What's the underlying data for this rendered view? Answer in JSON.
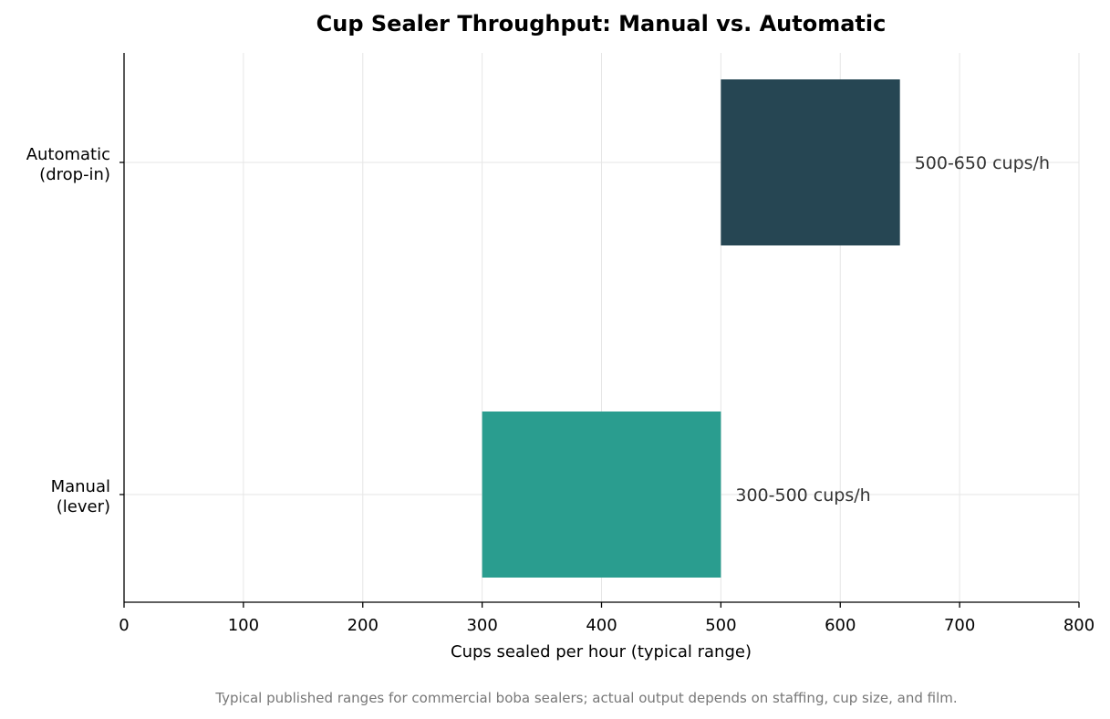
{
  "chart_data": {
    "type": "bar",
    "orientation": "horizontal",
    "title": "Cup Sealer Throughput: Manual vs. Automatic",
    "xlabel": "Cups sealed per hour (typical range)",
    "ylabel": "",
    "xlim": [
      0,
      800
    ],
    "xticks": [
      0,
      100,
      200,
      300,
      400,
      500,
      600,
      700,
      800
    ],
    "grid": true,
    "categories": [
      [
        "Automatic",
        "(drop-in)"
      ],
      [
        "Manual",
        "(lever)"
      ]
    ],
    "ranges": [
      {
        "start": 500,
        "end": 650,
        "label": "500-650 cups/h",
        "color": "#264653"
      },
      {
        "start": 300,
        "end": 500,
        "label": "300-500 cups/h",
        "color": "#2a9d8f"
      }
    ],
    "footnote": "Typical published ranges for commercial boba sealers; actual output depends on staffing, cup size, and film."
  }
}
